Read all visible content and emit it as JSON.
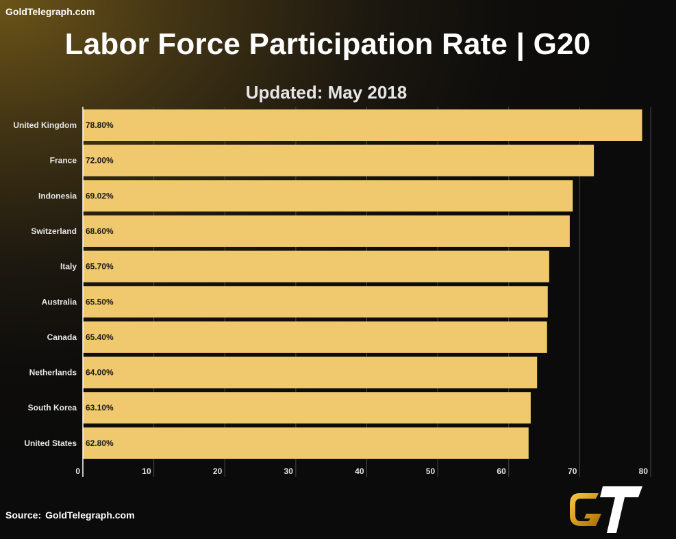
{
  "header": {
    "site": "GoldTelegraph.com",
    "title": "Labor Force Participation Rate | G20",
    "subtitle": "Updated: May 2018"
  },
  "footer": {
    "source_label": "Source:",
    "source_value": "GoldTelegraph.com"
  },
  "logo": {
    "text": "GT",
    "icon": "goldtelegraph-gt-logo"
  },
  "colors": {
    "bar": "#f0c96e",
    "bar_label": "#1a1a1a",
    "axis_text": "#e6e6e6",
    "grid": "#4a4a4a",
    "logo_gold": "#e3a51f",
    "logo_white": "#ffffff"
  },
  "chart_data": {
    "type": "bar",
    "orientation": "horizontal",
    "categories": [
      "United Kingdom",
      "France",
      "Indonesia",
      "Switzerland",
      "Italy",
      "Australia",
      "Canada",
      "Netherlands",
      "South Korea",
      "United States"
    ],
    "values": [
      78.8,
      72.0,
      69.02,
      68.6,
      65.7,
      65.5,
      65.4,
      64.0,
      63.1,
      62.8
    ],
    "value_labels": [
      "78.80%",
      "72.00%",
      "69.02%",
      "68.60%",
      "65.70%",
      "65.50%",
      "65.40%",
      "64.00%",
      "63.10%",
      "62.80%"
    ],
    "xticks": [
      "0",
      "10",
      "20",
      "30",
      "40",
      "50",
      "60",
      "70",
      "80"
    ],
    "xlim": [
      0,
      80
    ],
    "grid": true,
    "legend": "none"
  }
}
